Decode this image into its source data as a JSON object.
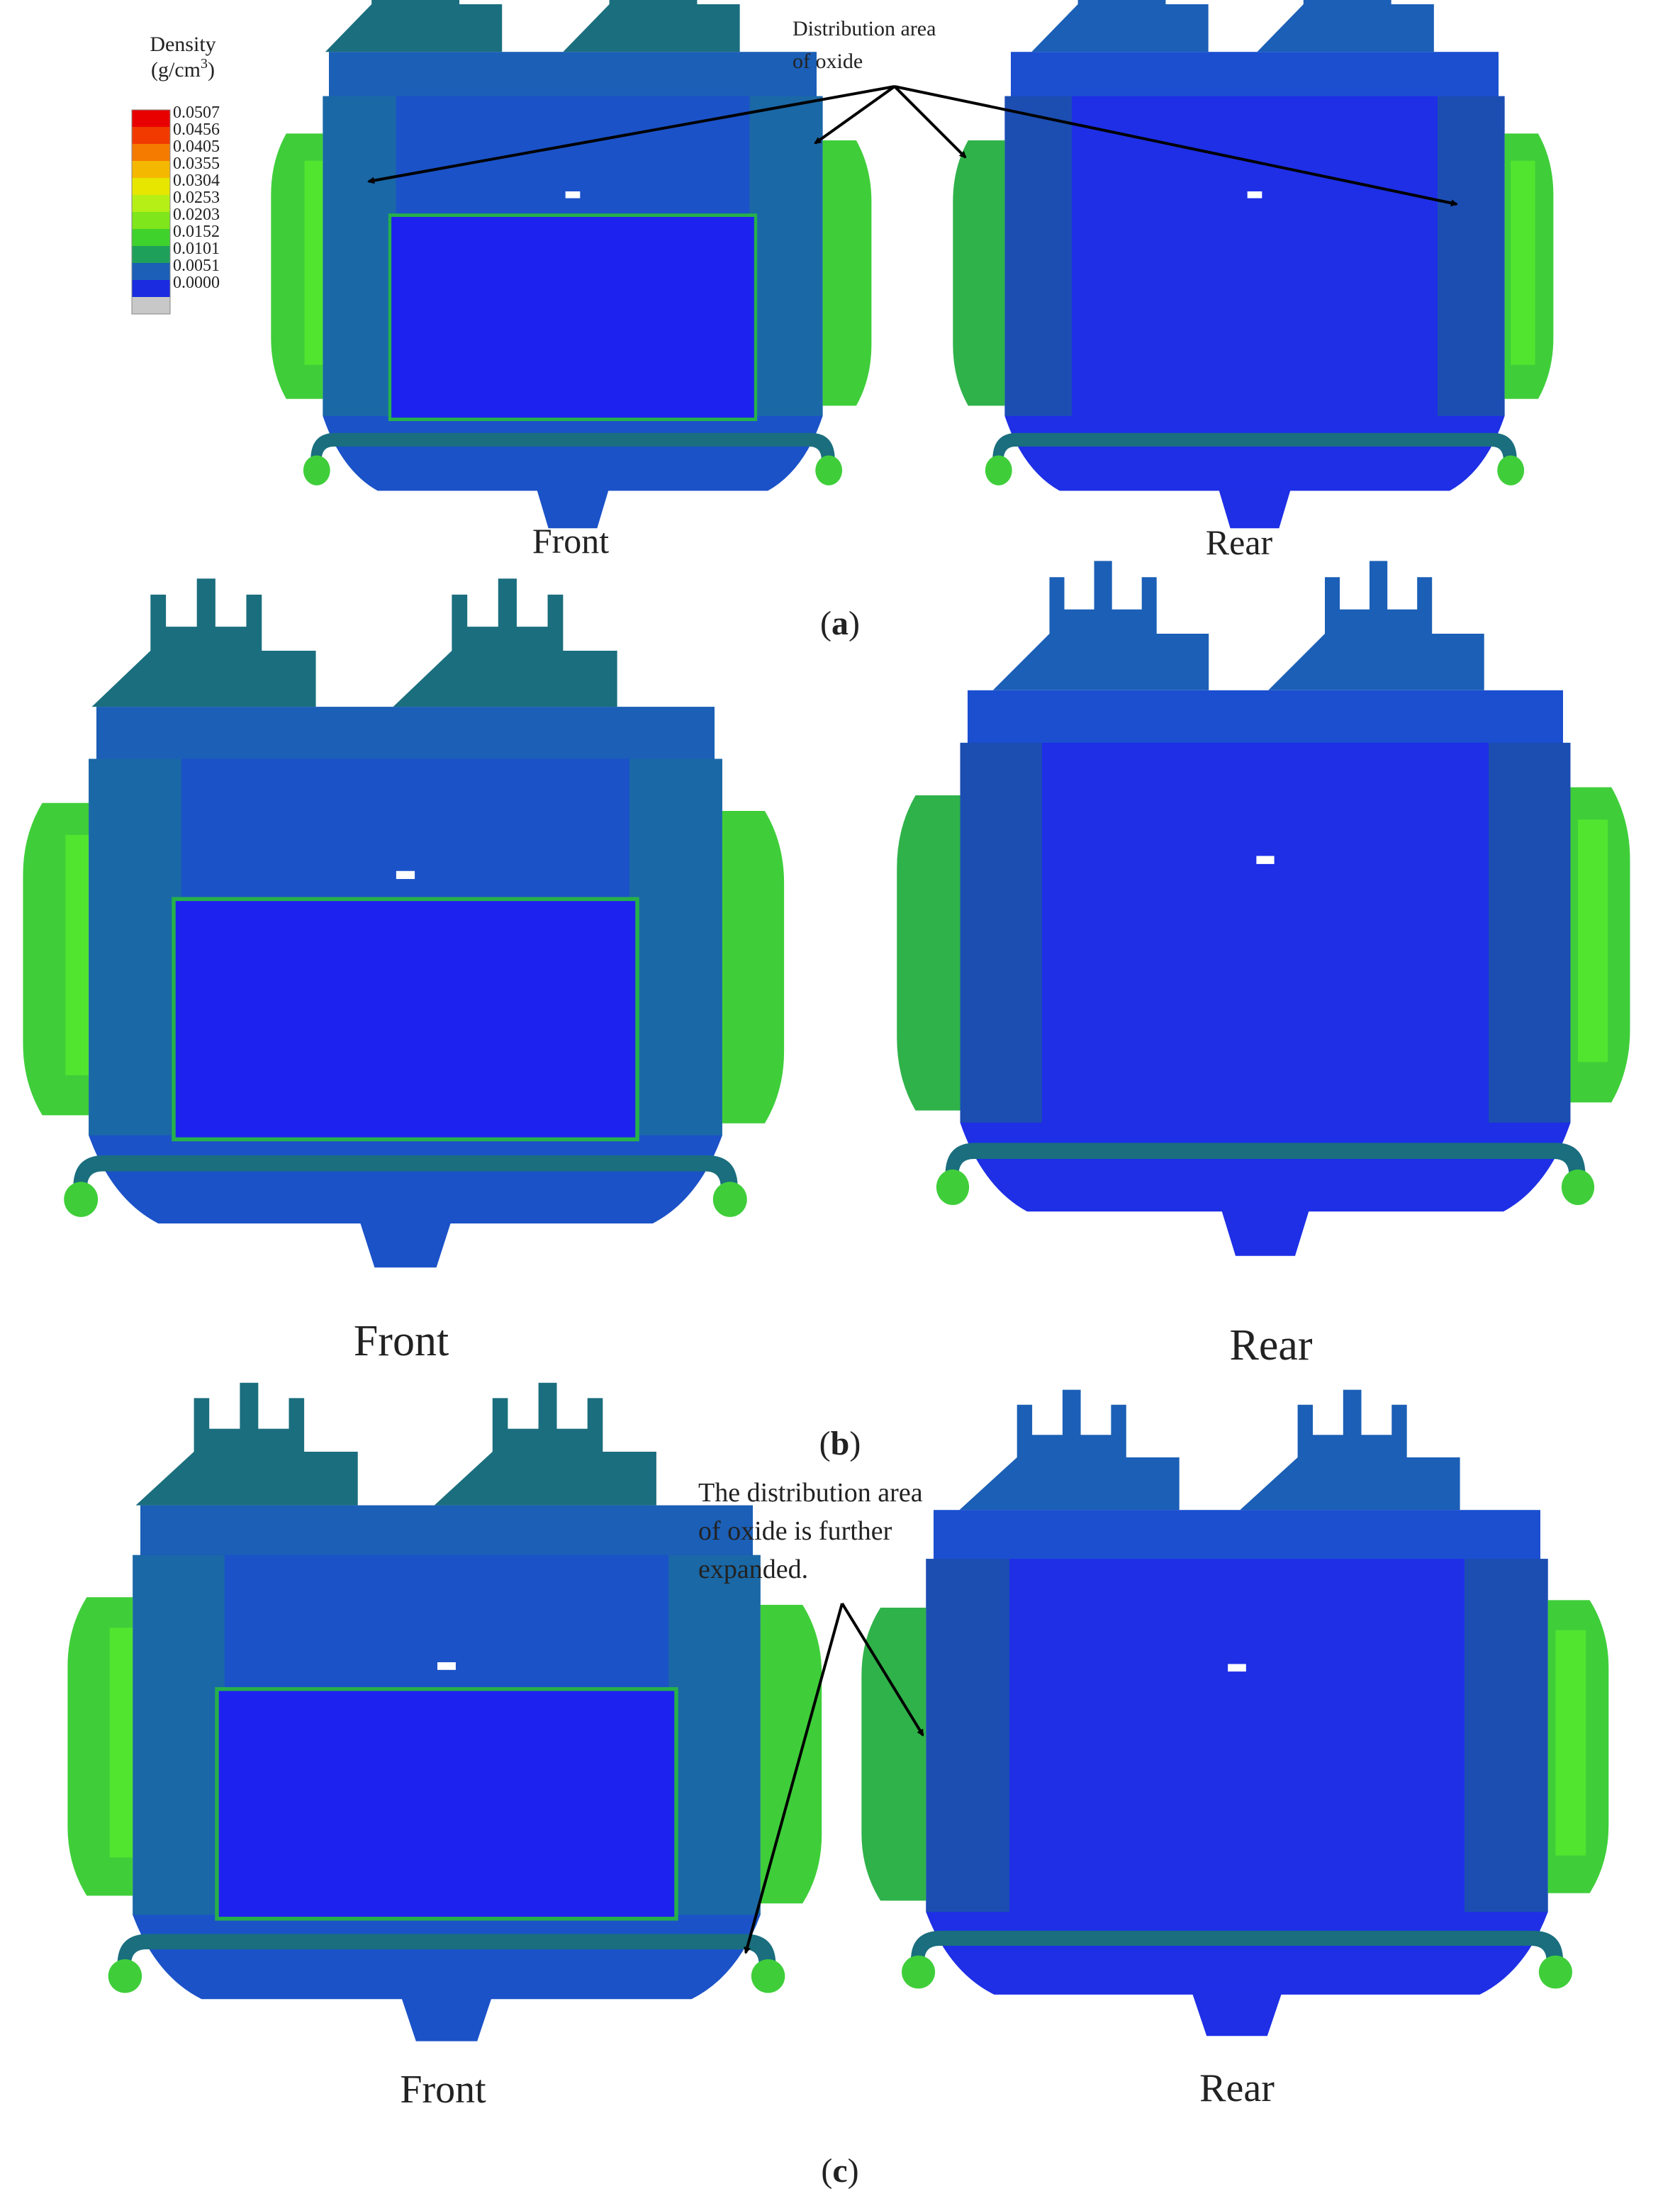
{
  "legend": {
    "title": "Density",
    "unit_base": "(g/cm",
    "unit_exp": "3",
    "unit_close": ")",
    "ticks": [
      "0.0507",
      "0.0456",
      "0.0405",
      "0.0355",
      "0.0304",
      "0.0253",
      "0.0203",
      "0.0152",
      "0.0101",
      "0.0051",
      "0.0000"
    ],
    "colors": [
      "#e80000",
      "#f03a00",
      "#f57a00",
      "#f5b800",
      "#e6e600",
      "#b5ef16",
      "#7ee61b",
      "#40d22c",
      "#1fa05a",
      "#1b5fb6",
      "#1a2be0",
      "#c8c8c8"
    ]
  },
  "colors": {
    "blue_deep": "#1e22ee",
    "blue_mid": "#1c4fc4",
    "teal": "#1a6e7e",
    "green": "#3fce3a",
    "bright_green": "#5af02c"
  },
  "panels": [
    {
      "caption": "a",
      "front_label": "Front",
      "rear_label": "Rear",
      "annotation": [
        "Distribution area",
        "of oxide"
      ]
    },
    {
      "caption": "b",
      "front_label": "Front",
      "rear_label": "Rear"
    },
    {
      "caption": "c",
      "front_label": "Front",
      "rear_label": "Rear",
      "annotation": [
        "The distribution area",
        "of oxide is further",
        "expanded."
      ]
    }
  ]
}
